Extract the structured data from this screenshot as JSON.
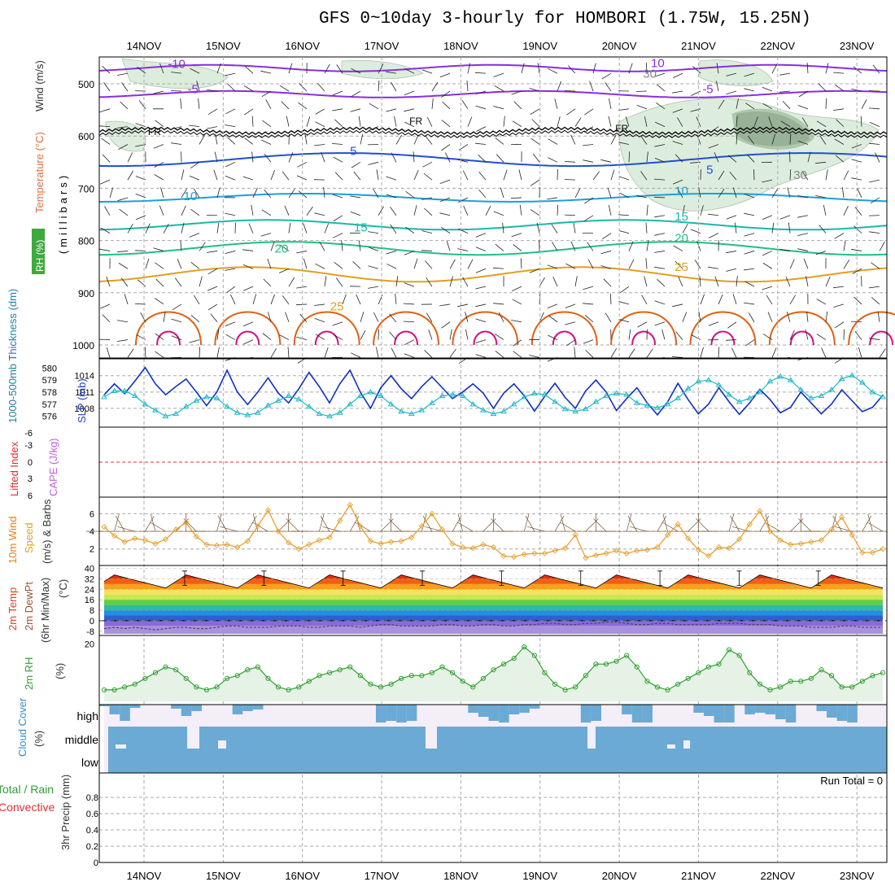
{
  "title": "GFS 0~10day 3-hourly for HOMBORI (1.75W, 15.25N)",
  "colors": {
    "temp_contour": "#8a2be2",
    "freezing": "#000000",
    "blue_iso": "#1f4fd0",
    "cyan_iso": "#1aa0d8",
    "teal_iso": "#18b8a8",
    "green_iso": "#1fbf80",
    "orange_iso": "#e0a020",
    "dark_orange": "#e06010",
    "magenta": "#d0108a",
    "rh_fill": "#cfe6cf",
    "slp": "#1030c0",
    "thickness": "#20b8c8",
    "wind": "#e8a030",
    "rh2m": "#30a030",
    "cloud": "#6aaad4",
    "lifted": "#e03030",
    "cape": "#c060e0"
  },
  "chart_data": [
    {
      "type": "line",
      "panel": "upper-air",
      "ylabel_parts": [
        "Temperature (°C)",
        "Wind (m/s)",
        "RH (%)"
      ],
      "yaxis_label": "(millibars)",
      "y_ticks": [
        500,
        600,
        700,
        800,
        900,
        1000
      ],
      "ylim": [
        1050,
        450
      ],
      "x_day_labels": [
        "14NOV",
        "15NOV",
        "16NOV",
        "17NOV",
        "18NOV",
        "19NOV",
        "20NOV",
        "21NOV",
        "22NOV",
        "23NOV"
      ],
      "isotherm_labels": [
        {
          "text": "-10",
          "x": 0.3,
          "p": 470,
          "c": "temp_contour"
        },
        {
          "text": "10",
          "x": 6.4,
          "p": 468,
          "c": "temp_contour"
        },
        {
          "text": "-5",
          "x": 0.55,
          "p": 518,
          "c": "temp_contour"
        },
        {
          "text": "-5",
          "x": 7.05,
          "p": 518,
          "c": "temp_contour"
        },
        {
          "text": "FR",
          "x": 0.05,
          "p": 598,
          "c": "freezing"
        },
        {
          "text": "FR",
          "x": 3.35,
          "p": 578,
          "c": "freezing"
        },
        {
          "text": "FR",
          "x": 5.95,
          "p": 592,
          "c": "freezing"
        },
        {
          "text": "5",
          "x": 2.6,
          "p": 636,
          "c": "blue_iso"
        },
        {
          "text": "5",
          "x": 7.1,
          "p": 672,
          "c": "blue_iso"
        },
        {
          "text": "10",
          "x": 0.5,
          "p": 723,
          "c": "cyan_iso"
        },
        {
          "text": "10",
          "x": 6.7,
          "p": 713,
          "c": "cyan_iso"
        },
        {
          "text": "15",
          "x": 2.65,
          "p": 783,
          "c": "teal_iso"
        },
        {
          "text": "15",
          "x": 6.7,
          "p": 762,
          "c": "teal_iso"
        },
        {
          "text": "20",
          "x": 1.65,
          "p": 823,
          "c": "green_iso"
        },
        {
          "text": "20",
          "x": 6.7,
          "p": 803,
          "c": "green_iso"
        },
        {
          "text": "25",
          "x": 6.7,
          "p": 858,
          "c": "orange_iso"
        },
        {
          "text": "25",
          "x": 2.35,
          "p": 934,
          "c": "orange_iso"
        },
        {
          "text": "30",
          "x": 6.3,
          "p": 488,
          "c": "gray"
        },
        {
          "text": "30",
          "x": 8.2,
          "p": 682,
          "c": "gray"
        }
      ]
    },
    {
      "type": "line",
      "panel": "slp-thickness",
      "ylabel_left": "1000-500mb Thickness (dm)",
      "ylabel_right": "SLP (mb)",
      "thickness_ticks": [
        576,
        577,
        578,
        579,
        580
      ],
      "slp_ticks": [
        1008,
        1011,
        1014
      ],
      "series": [
        {
          "name": "SLP (mb)",
          "values": [
            1010.5,
            1012.5,
            1010.7,
            1013.0,
            1015.5,
            1012.5,
            1010.5,
            1012.0,
            1013.4,
            1011.0,
            1008.5,
            1011.0,
            1015.0,
            1011.0,
            1008.7,
            1011.0,
            1013.6,
            1010.8,
            1009.0,
            1011.6,
            1014.6,
            1012.0,
            1009.0,
            1012.5,
            1015.0,
            1011.0,
            1008.0,
            1011.8,
            1014.0,
            1011.6,
            1009.8,
            1012.0,
            1013.8,
            1011.8,
            1009.8,
            1011.0,
            1012.5,
            1010.8,
            1008.0,
            1010.8,
            1012.5,
            1010.3,
            1007.5,
            1010.2,
            1012.6,
            1010.0,
            1008.0,
            1011.2,
            1013.2,
            1011.0,
            1007.6,
            1009.8,
            1011.8,
            1009.0,
            1006.8,
            1009.2,
            1012.6,
            1009.6,
            1007.0,
            1008.8,
            1011.8,
            1009.2,
            1006.9,
            1009.0,
            1011.5,
            1009.6,
            1007.2,
            1008.2,
            1011.0,
            1009.0,
            1007.0,
            1008.8,
            1011.4,
            1009.4,
            1007.4,
            1008.2,
            1010.4
          ]
        },
        {
          "name": "Thickness (dm)",
          "values": [
            577.6,
            578.1,
            578.1,
            577.7,
            577.0,
            576.5,
            576.0,
            576.2,
            576.8,
            577.3,
            577.6,
            577.5,
            576.8,
            576.3,
            576.1,
            576.3,
            576.9,
            577.3,
            577.7,
            577.4,
            576.8,
            576.2,
            576.0,
            576.3,
            577.0,
            577.7,
            578.0,
            577.7,
            577.0,
            576.4,
            576.2,
            576.5,
            577.1,
            577.7,
            577.8,
            577.7,
            577.0,
            576.5,
            576.2,
            576.4,
            577.0,
            577.6,
            577.9,
            577.8,
            577.2,
            576.6,
            576.4,
            576.6,
            577.2,
            577.7,
            577.9,
            577.8,
            577.1,
            576.9,
            576.7,
            577.0,
            577.5,
            578.3,
            578.9,
            579.0,
            578.6,
            577.8,
            577.2,
            577.5,
            578.0,
            578.9,
            579.3,
            579.0,
            578.2,
            577.5,
            577.7,
            578.2,
            579.1,
            579.4,
            578.8,
            578.0,
            577.6
          ]
        }
      ]
    },
    {
      "type": "line",
      "panel": "stability",
      "ylabel_left": "Lifted Index",
      "ylabel_right": "CAPE (J/kg)",
      "y_ticks": [
        "-6",
        "-3",
        "0",
        "3",
        "6"
      ],
      "series": [
        {
          "name": "Lifted Index",
          "values": [
            0
          ]
        }
      ]
    },
    {
      "type": "line",
      "panel": "wind10m",
      "ylabel": "10m Wind Speed & Barbs (m/s)",
      "y_ticks": [
        2,
        4,
        6
      ],
      "series": [
        {
          "name": "10m Wind Speed",
          "values": [
            4.5,
            3.5,
            2.8,
            3.2,
            3.0,
            2.6,
            3.1,
            4.2,
            5.0,
            3.4,
            2.5,
            2.4,
            2.5,
            2.2,
            2.9,
            4.6,
            6.4,
            4.0,
            2.7,
            2.0,
            2.5,
            3.0,
            3.3,
            5.2,
            7.0,
            4.6,
            2.9,
            2.6,
            2.8,
            2.9,
            3.3,
            4.6,
            6.0,
            4.2,
            2.6,
            2.2,
            2.1,
            2.5,
            2.2,
            1.2,
            1.1,
            1.4,
            1.5,
            1.5,
            1.8,
            2.1,
            3.6,
            1.0,
            1.3,
            1.5,
            1.8,
            1.5,
            1.8,
            1.9,
            2.2,
            3.6,
            4.8,
            3.2,
            1.9,
            1.2,
            2.2,
            2.1,
            3.1,
            4.8,
            6.3,
            4.0,
            3.0,
            2.5,
            2.6,
            2.8,
            3.0,
            4.2,
            5.6,
            3.6,
            1.6,
            1.6,
            2.0
          ]
        }
      ]
    },
    {
      "type": "area",
      "panel": "temp2m",
      "ylabel": "2m Temp 2m DewPt (6hr Min/Max) (°C)",
      "y_ticks": [
        40,
        32,
        24,
        16,
        8,
        0,
        -8
      ],
      "series": [
        {
          "name": "2m Temp",
          "values": [
            30,
            35,
            33,
            31,
            29,
            27,
            25,
            30,
            35,
            33,
            31,
            29,
            27,
            25,
            30,
            35,
            33,
            31,
            29,
            27,
            25,
            30,
            35,
            33,
            31,
            29,
            27,
            25,
            30,
            35,
            33,
            31,
            29,
            27,
            25,
            30,
            35,
            33,
            31,
            29,
            27,
            25,
            30,
            35,
            33,
            31,
            29,
            27,
            25,
            30,
            35,
            33,
            31,
            29,
            27,
            25,
            30,
            35,
            33,
            31,
            29,
            27,
            25,
            30,
            35,
            33,
            31,
            29,
            27,
            25,
            30,
            35,
            33,
            31,
            29,
            27,
            25
          ]
        },
        {
          "name": "2m DewPt",
          "values": [
            -6,
            -5,
            -6,
            -5,
            -6,
            -7,
            -6,
            -5,
            -5,
            -6,
            -6,
            -5,
            -4,
            -4,
            -5,
            -5,
            -5,
            -4,
            -4,
            -4,
            -5,
            -5,
            -4,
            -4,
            -4,
            -5,
            -4,
            -3,
            -3,
            -4,
            -4,
            -4,
            -4,
            -3,
            -3,
            -4,
            -4,
            -3,
            -3,
            -4,
            -4,
            -3,
            -3,
            -2,
            -2,
            -3,
            -3,
            -2,
            -2,
            -1,
            -1,
            -2,
            -3,
            -3,
            -2,
            -2,
            -3,
            -3,
            -3,
            -3,
            -2,
            -2,
            -2,
            -3,
            -3,
            -3,
            -4,
            -4,
            -4,
            -5,
            -5,
            -5,
            -4,
            -4,
            -5,
            -5,
            -5
          ]
        }
      ]
    },
    {
      "type": "line",
      "panel": "rh2m",
      "ylabel": "2m RH (%)",
      "y_ticks": [
        20
      ],
      "series": [
        {
          "name": "2m RH",
          "values": [
            4,
            4,
            5,
            6,
            8,
            10,
            12,
            11,
            8,
            5,
            4,
            5,
            8,
            9,
            11,
            12,
            8,
            5,
            4,
            5,
            7,
            9,
            10,
            11,
            12,
            9,
            6,
            5,
            6,
            8,
            9,
            9,
            10,
            12,
            10,
            7,
            5,
            8,
            11,
            13,
            15,
            19,
            16,
            10,
            6,
            4,
            5,
            9,
            13,
            13,
            14,
            16,
            12,
            7,
            5,
            4,
            6,
            8,
            10,
            12,
            13,
            18,
            16,
            10,
            6,
            4,
            5,
            7,
            7,
            8,
            11,
            9,
            5,
            5,
            7,
            9,
            10
          ]
        }
      ]
    },
    {
      "type": "bar",
      "panel": "cloud",
      "ylabel": "Cloud Cover (%)",
      "levels": [
        "high",
        "middle",
        "low"
      ]
    },
    {
      "type": "bar",
      "panel": "precip",
      "ylabel_parts": [
        "Total / Rain",
        "Convective",
        "3hr Precip (mm)"
      ],
      "y_ticks": [
        "0",
        "0.2",
        "0.4",
        "0.6",
        "0.8"
      ],
      "run_total_label": "Run Total = 0"
    }
  ]
}
